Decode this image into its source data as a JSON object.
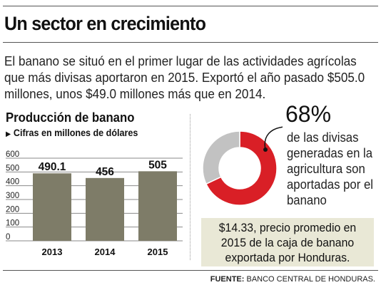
{
  "headline": "Un sector en crecimiento",
  "intro": "El banano se situó en el primer lugar de las actividades agrícolas que más divisas aportaron en 2015. Exportó el año pasado $505.0 millones, unos $49.0 millones más que en 2014.",
  "colors": {
    "bar": "#7e7c68",
    "donut_main": "#d91f26",
    "donut_rest": "#c2c2c2",
    "box_bg": "#e9e8d6"
  },
  "chart_data": [
    {
      "type": "bar",
      "title": "Producción de banano",
      "subtitle": "Cifras en millones de dólares",
      "categories": [
        "2013",
        "2014",
        "2015"
      ],
      "values": [
        490.1,
        456,
        505
      ],
      "value_labels": [
        "490.1",
        "456",
        "505"
      ],
      "yticks": [
        "0",
        "100",
        "200",
        "300",
        "400",
        "500",
        "600"
      ],
      "ylim": [
        0,
        600
      ],
      "grid": true
    },
    {
      "type": "pie",
      "style": "donut",
      "values": [
        68,
        32
      ],
      "label": "68%",
      "description": "de las divisas generadas en la agricultura son aportadas por el banano"
    }
  ],
  "price_note": "$14.33, precio promedio en 2015 de la caja de banano exportada por Honduras.",
  "source": {
    "label": "FUENTE:",
    "text": "BANCO CENTRAL DE HONDURAS."
  }
}
